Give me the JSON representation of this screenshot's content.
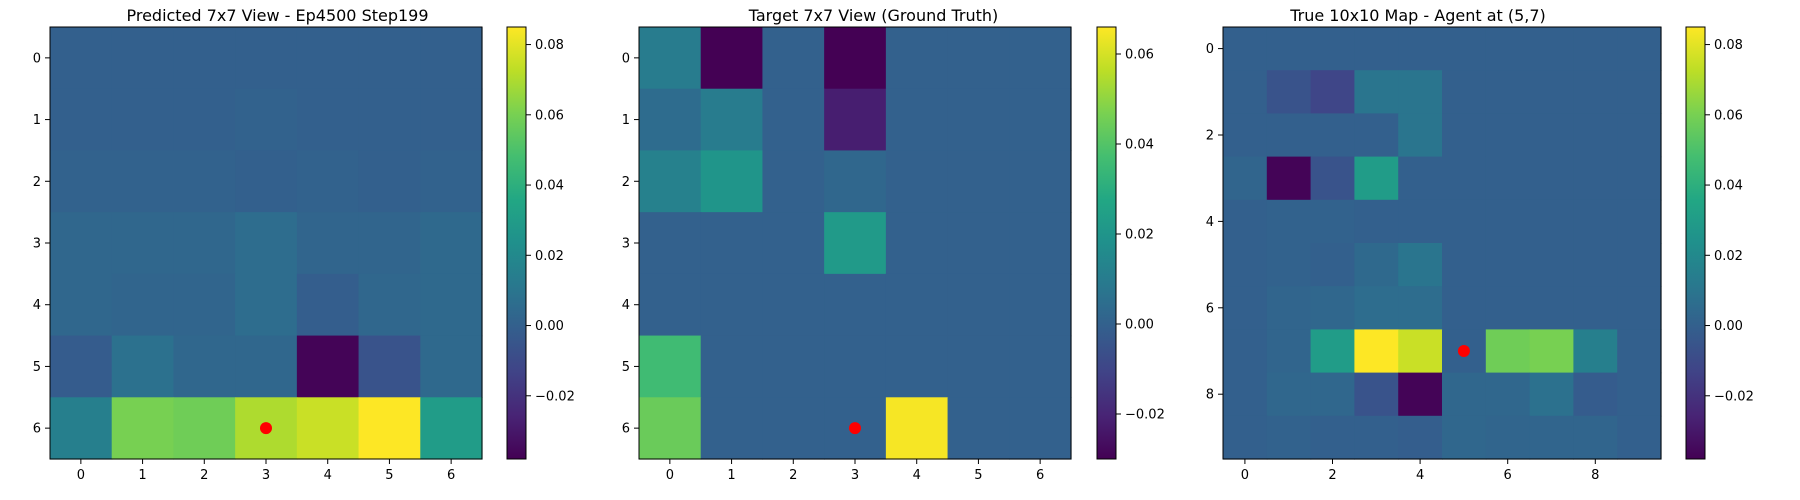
{
  "chart_data": [
    {
      "type": "heatmap",
      "title": "Predicted 7x7 View - Ep4500 Step199",
      "xticks": [
        "0",
        "1",
        "2",
        "3",
        "4",
        "5",
        "6"
      ],
      "yticks": [
        "0",
        "1",
        "2",
        "3",
        "4",
        "5",
        "6"
      ],
      "rows": 7,
      "cols": 7,
      "values": [
        [
          0.0,
          0.0,
          0.0,
          0.0,
          0.0,
          0.0,
          0.0
        ],
        [
          0.0,
          0.0,
          0.0,
          0.001,
          0.0,
          0.0,
          0.0
        ],
        [
          0.001,
          0.001,
          0.001,
          0.0,
          0.001,
          0.0,
          0.001
        ],
        [
          0.003,
          0.003,
          0.003,
          0.006,
          0.002,
          0.002,
          0.004
        ],
        [
          0.003,
          0.002,
          0.002,
          0.006,
          -0.001,
          0.003,
          0.004
        ],
        [
          -0.002,
          0.008,
          0.003,
          0.003,
          -0.037,
          -0.006,
          0.004
        ],
        [
          0.015,
          0.06,
          0.058,
          0.07,
          0.075,
          0.085,
          0.03
        ]
      ],
      "marker": {
        "row": 6,
        "col": 3,
        "color": "#ff0000"
      },
      "colorbar": {
        "ticks": [
          0.08,
          0.06,
          0.04,
          0.02,
          0.0,
          -0.02
        ],
        "tick_labels": [
          "0.08",
          "0.06",
          "0.04",
          "0.02",
          "0.00",
          "−0.02"
        ],
        "vmin": -0.038,
        "vmax": 0.085
      }
    },
    {
      "type": "heatmap",
      "title": "Target 7x7 View (Ground Truth)",
      "xticks": [
        "0",
        "1",
        "2",
        "3",
        "4",
        "5",
        "6"
      ],
      "yticks": [
        "0",
        "1",
        "2",
        "3",
        "4",
        "5",
        "6"
      ],
      "rows": 7,
      "cols": 7,
      "values": [
        [
          0.01,
          -0.03,
          0.0,
          -0.03,
          0.0,
          0.0,
          0.0
        ],
        [
          0.004,
          0.01,
          0.0,
          -0.022,
          0.0,
          0.0,
          0.0
        ],
        [
          0.012,
          0.02,
          0.0,
          0.002,
          0.0,
          0.0,
          0.0
        ],
        [
          0.0,
          0.0,
          0.0,
          0.022,
          0.0,
          0.0,
          0.0
        ],
        [
          0.0,
          0.0,
          0.0,
          0.0,
          0.0,
          0.0,
          0.0
        ],
        [
          0.036,
          0.0,
          0.0,
          0.0,
          0.0,
          0.0,
          0.0
        ],
        [
          0.044,
          0.0,
          0.0,
          0.0,
          0.065,
          0.0,
          0.0
        ]
      ],
      "marker": {
        "row": 6,
        "col": 3,
        "color": "#ff0000"
      },
      "colorbar": {
        "ticks": [
          0.06,
          0.04,
          0.02,
          0.0,
          -0.02
        ],
        "tick_labels": [
          "0.06",
          "0.04",
          "0.02",
          "0.00",
          "−0.02"
        ],
        "vmin": -0.03,
        "vmax": 0.066
      }
    },
    {
      "type": "heatmap",
      "title": "True 10x10 Map - Agent at (5,7)",
      "xticks": [
        "0",
        "2",
        "4",
        "6",
        "8"
      ],
      "yticks": [
        "0",
        "2",
        "4",
        "6",
        "8"
      ],
      "tick_step": 2,
      "rows": 10,
      "cols": 10,
      "values": [
        [
          0.0,
          0.0,
          0.0,
          0.0,
          0.0,
          0.0,
          0.0,
          0.0,
          0.0,
          0.0
        ],
        [
          0.0,
          -0.006,
          -0.012,
          0.01,
          0.01,
          0.0,
          0.0,
          0.0,
          0.0,
          0.0
        ],
        [
          0.0,
          0.0,
          0.0,
          0.0,
          0.01,
          0.0,
          0.0,
          0.0,
          0.0,
          0.0
        ],
        [
          0.002,
          -0.037,
          -0.006,
          0.03,
          0.0,
          0.0,
          0.0,
          0.0,
          0.0,
          0.0
        ],
        [
          0.0,
          0.001,
          0.001,
          0.0,
          0.0,
          0.0,
          0.0,
          0.0,
          0.0,
          0.0
        ],
        [
          0.0,
          0.001,
          0.0,
          0.004,
          0.01,
          0.0,
          0.0,
          0.0,
          0.0,
          0.0
        ],
        [
          0.0,
          0.002,
          0.003,
          0.006,
          0.006,
          0.0,
          0.0,
          0.0,
          0.0,
          0.0
        ],
        [
          0.0,
          0.002,
          0.03,
          0.085,
          0.075,
          0.0,
          0.058,
          0.06,
          0.015,
          0.0
        ],
        [
          0.0,
          0.003,
          0.003,
          -0.006,
          -0.037,
          0.003,
          0.003,
          0.008,
          -0.002,
          0.0
        ],
        [
          0.0,
          0.001,
          0.0,
          0.0,
          -0.001,
          0.003,
          0.002,
          0.002,
          0.002,
          0.0
        ]
      ],
      "marker": {
        "row": 7,
        "col": 5,
        "color": "#ff0000"
      },
      "colorbar": {
        "ticks": [
          0.08,
          0.06,
          0.04,
          0.02,
          0.0,
          -0.02
        ],
        "tick_labels": [
          "0.08",
          "0.06",
          "0.04",
          "0.02",
          "0.00",
          "−0.02"
        ],
        "vmin": -0.038,
        "vmax": 0.085
      }
    }
  ]
}
